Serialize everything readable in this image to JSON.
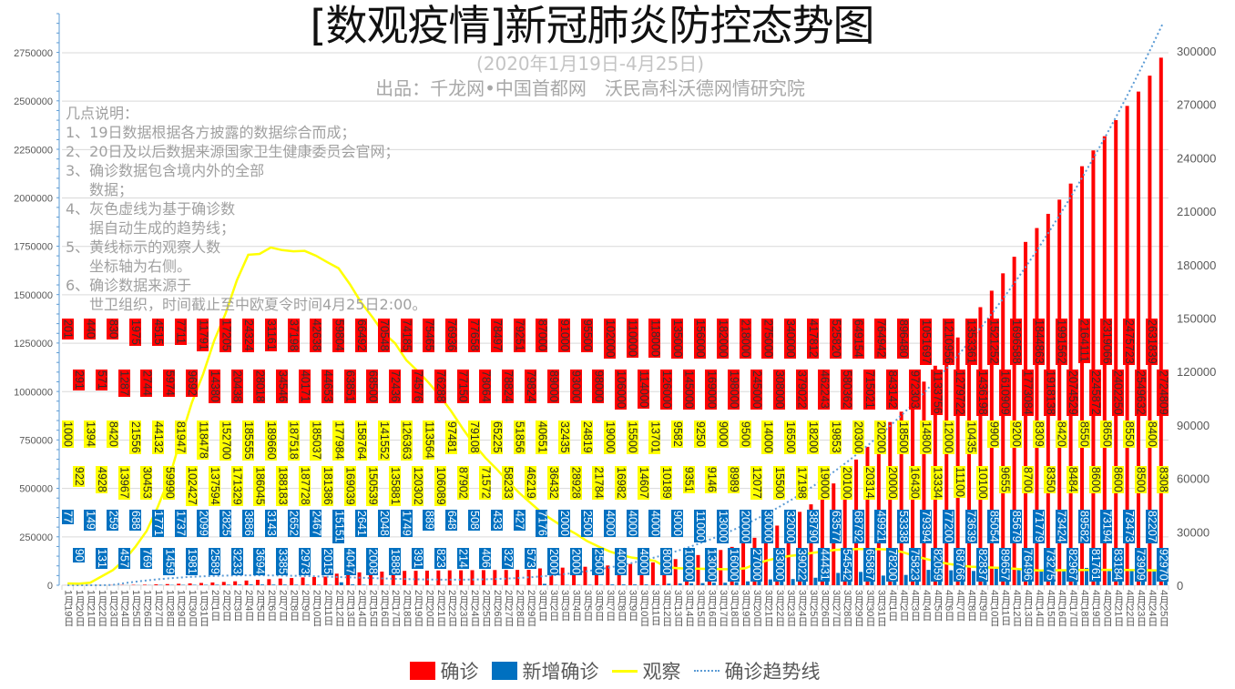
{
  "title": "[数观疫情]新冠肺炎防控态势图",
  "subtitle": "(2020年1月19日-4月25日)",
  "producer": "出品：千龙网•中国首都网　沃民高科沃德网情研究院",
  "notes": [
    "几点说明：",
    "1、19日数据根据各方披露的数据综合而成；",
    "2、20日及以后数据来源国家卫生健康委员会官网；",
    "3、确诊数据包含境内外的全部",
    "数据；",
    "4、灰色虚线为基于确诊数",
    "据自动生成的趋势线；",
    "5、黄线标示的观察人数",
    "坐标轴为右侧。",
    "6、确诊数据来源于",
    "世卫组织，时间截止至中欧夏令时间4月25日2:00。"
  ],
  "colors": {
    "confirmed": "#ff0000",
    "new_confirmed": "#0070c0",
    "observation": "#ffff00",
    "trend": "#5b9bd5"
  },
  "chart_data": {
    "type": "bar+line",
    "legend_position": "bottom",
    "grid": true,
    "left_axis": {
      "ylim": [
        0,
        3000000
      ],
      "ticks": [
        "0",
        "250000",
        "500000",
        "750000",
        "1000000",
        "1250000",
        "1500000",
        "1750000",
        "2000000",
        "2250000",
        "2500000",
        "2750000"
      ]
    },
    "right_axis": {
      "ylim": [
        0,
        300000
      ],
      "ticks": [
        "0",
        "30000",
        "60000",
        "90000",
        "120000",
        "150000",
        "180000",
        "210000",
        "240000",
        "270000",
        "300000"
      ]
    },
    "categories": [
      "1月19日",
      "1月20日",
      "1月21日",
      "1月22日",
      "1月23日",
      "1月24日",
      "1月25日",
      "1月26日",
      "1月27日",
      "1月28日",
      "1月29日",
      "1月30日",
      "1月31日",
      "2月1日",
      "2月2日",
      "2月3日",
      "2月4日",
      "2月5日",
      "2月6日",
      "2月7日",
      "2月8日",
      "2月9日",
      "2月10日",
      "2月11日",
      "2月12日",
      "2月13日",
      "2月14日",
      "2月15日",
      "2月16日",
      "2月17日",
      "2月18日",
      "2月19日",
      "2月20日",
      "2月21日",
      "2月22日",
      "2月23日",
      "2月24日",
      "2月25日",
      "2月26日",
      "2月27日",
      "2月28日",
      "2月29日",
      "3月1日",
      "3月2日",
      "3月3日",
      "3月4日",
      "3月5日",
      "3月6日",
      "3月7日",
      "3月8日",
      "3月9日",
      "3月10日",
      "3月11日",
      "3月12日",
      "3月13日",
      "3月14日",
      "3月15日",
      "3月16日",
      "3月17日",
      "3月18日",
      "3月19日",
      "3月20日",
      "3月21日",
      "3月22日",
      "3月23日",
      "3月24日",
      "3月25日",
      "3月26日",
      "3月27日",
      "3月28日",
      "3月29日",
      "3月30日",
      "3月31日",
      "4月1日",
      "4月2日",
      "4月3日",
      "4月4日",
      "4月5日",
      "4月6日",
      "4月7日",
      "4月8日",
      "4月9日",
      "4月10日",
      "4月11日",
      "4月12日",
      "4月13日",
      "4月14日",
      "4月15日",
      "4月16日",
      "4月17日",
      "4月18日",
      "4月19日",
      "4月20日",
      "4月21日",
      "4月22日",
      "4月23日",
      "4月24日",
      "4月25日"
    ],
    "series": [
      {
        "name": "确诊",
        "type": "bar",
        "axis": "left",
        "values": [
          201,
          291,
          440,
          571,
          830,
          1287,
          1975,
          2744,
          4515,
          5974,
          7711,
          9692,
          11791,
          14380,
          17205,
          20438,
          24324,
          28018,
          31161,
          34546,
          37198,
          40171,
          42638,
          44653,
          59804,
          63851,
          66492,
          68500,
          70548,
          72436,
          74185,
          74576,
          75465,
          76288,
          76936,
          77150,
          77658,
          78064,
          78497,
          78824,
          79251,
          79824,
          87000,
          89000,
          91000,
          93000,
          95500,
          98000,
          102000,
          106000,
          110000,
          114000,
          118000,
          126000,
          135000,
          145000,
          156000,
          169000,
          182000,
          198000,
          218000,
          245000,
          275000,
          308000,
          340000,
          379022,
          417812,
          462243,
          525820,
          580362,
          649154,
          715021,
          764942,
          843142,
          896480,
          972303,
          1051697,
          1133756,
          1210956,
          1279722,
          1353361,
          1436198,
          1521252,
          1610909,
          1696588,
          1773084,
          1844863,
          1918138,
          1991562,
          2074529,
          2164111,
          2245872,
          2319066,
          2402250,
          2475723,
          2549632,
          2631839,
          2724809
        ]
      },
      {
        "name": "新增确诊",
        "type": "bar",
        "axis": "left",
        "values": [
          77,
          90,
          149,
          131,
          259,
          457,
          688,
          769,
          1771,
          1459,
          1737,
          1981,
          2099,
          2589,
          2825,
          3233,
          3886,
          3694,
          3143,
          3385,
          2652,
          2973,
          2467,
          2015,
          15151,
          4047,
          2641,
          2008,
          2048,
          1888,
          1749,
          391,
          889,
          823,
          648,
          214,
          508,
          406,
          433,
          327,
          427,
          573,
          7176,
          2000,
          2000,
          2000,
          2500,
          2500,
          4000,
          4000,
          4000,
          4000,
          4000,
          8000,
          9000,
          10000,
          11000,
          13000,
          13000,
          16000,
          20000,
          27000,
          30000,
          33000,
          32000,
          39022,
          38790,
          44431,
          63577,
          54542,
          68792,
          65867,
          49921,
          78200,
          53338,
          75823,
          79394,
          82059,
          77200,
          68766,
          73639,
          82837,
          85054,
          89657,
          85679,
          76496,
          71779,
          73275,
          73424,
          82967,
          89582,
          81761,
          73194,
          83184,
          73473,
          73909,
          82207,
          92970
        ]
      },
      {
        "name": "观察",
        "type": "line",
        "axis": "right",
        "values": [
          1000,
          922,
          1394,
          4928,
          8420,
          13967,
          21556,
          30453,
          44132,
          59990,
          81947,
          102427,
          118478,
          137594,
          152700,
          171329,
          185555,
          186045,
          189660,
          188183,
          187518,
          187728,
          185037,
          181386,
          177984,
          169039,
          158764,
          150539,
          141552,
          135881,
          126363,
          120302,
          113564,
          106089,
          97481,
          87902,
          79108,
          71572,
          65225,
          58233,
          51856,
          46219,
          40651,
          36432,
          32435,
          28928,
          24819,
          21784,
          19000,
          16982,
          15500,
          14607,
          13701,
          10189,
          9582,
          9351,
          9250,
          9146,
          9000,
          8989,
          9500,
          12077,
          14000,
          15500,
          16500,
          17198,
          18200,
          19000,
          19853,
          20100,
          20300,
          20314,
          20200,
          20000,
          18500,
          16430,
          14800,
          13334,
          12000,
          11100,
          10435,
          10100,
          9900,
          9655,
          9200,
          8700,
          8309,
          8350,
          8420,
          8484,
          8550,
          8600,
          8650,
          8600,
          8550,
          8500,
          8400,
          8308
        ]
      },
      {
        "name": "确诊趋势线",
        "type": "trendline",
        "axis": "left",
        "of": "确诊"
      }
    ]
  },
  "legend": [
    "确诊",
    "新增确诊",
    "观察",
    "确诊趋势线"
  ]
}
